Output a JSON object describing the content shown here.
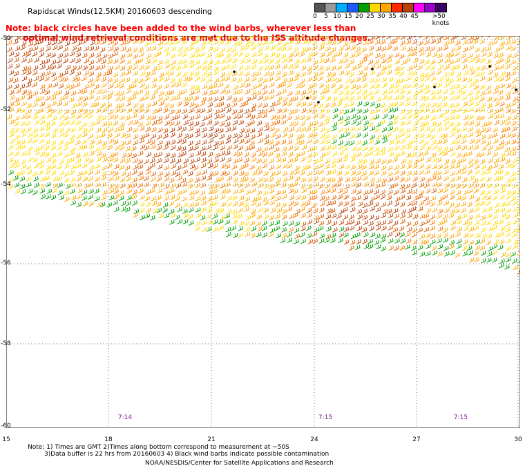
{
  "title": "Rapidscat Winds(12.5KM) 20160603 descending",
  "note_line1": "Note: black circles have been added to the wind barbs, wherever less than",
  "note_line2": "      optimal wind retrieval conditions are met due to the ISS altitude changes.",
  "legend": {
    "labels": [
      "0",
      "5",
      "10",
      "15",
      "20",
      "25",
      "30",
      "35",
      "40",
      "45",
      ">50 knots"
    ],
    "colors": [
      "#555555",
      "#9a9a9a",
      "#00b0ff",
      "#1f5cff",
      "#00a000",
      "#ffd800",
      "#ffa800",
      "#ff2a00",
      "#b8400a",
      "#ff00ff",
      "#9900cc",
      "#3a0066"
    ]
  },
  "lat_labels": [
    "-50",
    "-52",
    "-54",
    "-56",
    "-58",
    "-60"
  ],
  "lon_labels": [
    "15",
    "18",
    "21",
    "24",
    "27",
    "30"
  ],
  "times": [
    "7:14",
    "7:15",
    "7:15"
  ],
  "footnote_line1": "Note: 1) Times are GMT 2)Times along bottom correspond to measurement at ~50S",
  "footnote_line2": "3)Data buffer is 22 hrs from 20160603 4) Black wind barbs indicate possible contamination",
  "credit": "NOAA/NESDIS/Center for Satellite Applications and Research"
}
